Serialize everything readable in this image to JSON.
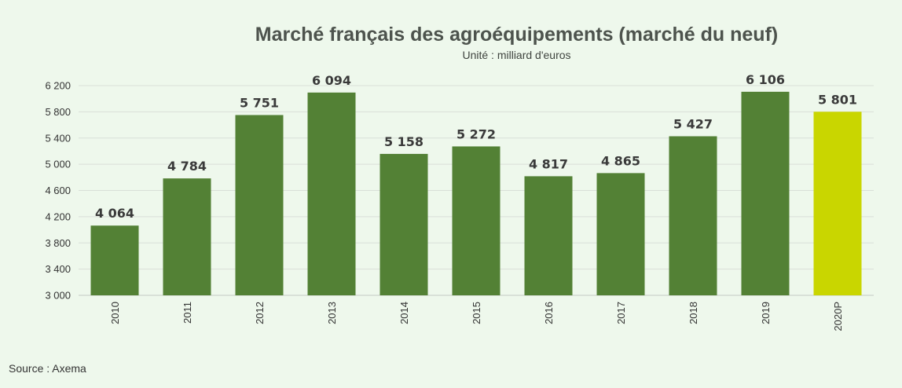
{
  "chart_data": {
    "type": "bar",
    "title": "Marché français des agroéquipements (marché du neuf)",
    "subtitle": "Unité : milliard d'euros",
    "categories": [
      "2010",
      "2011",
      "2012",
      "2013",
      "2014",
      "2015",
      "2016",
      "2017",
      "2018",
      "2019",
      "2020P"
    ],
    "values": [
      4064,
      4784,
      5751,
      6094,
      5158,
      5272,
      4817,
      4865,
      5427,
      6106,
      5801
    ],
    "value_labels": [
      "4 064",
      "4 784",
      "5 751",
      "6 094",
      "5 158",
      "5 272",
      "4 817",
      "4 865",
      "5 427",
      "6 106",
      "5 801"
    ],
    "ylim": [
      3000,
      6200
    ],
    "yticks": [
      3000,
      3400,
      3800,
      4200,
      4600,
      5000,
      5400,
      5800,
      6200
    ],
    "ytick_labels": [
      "3 000",
      "3 400",
      "3 800",
      "4 200",
      "4 600",
      "5 000",
      "5 400",
      "5 800",
      "6 200"
    ],
    "grid": true,
    "xlabel": "",
    "ylabel": "",
    "bar_color": "#538135",
    "highlight_color": "#c9d600",
    "highlight_categories": [
      "2020P"
    ],
    "source": "Source : Axema"
  }
}
